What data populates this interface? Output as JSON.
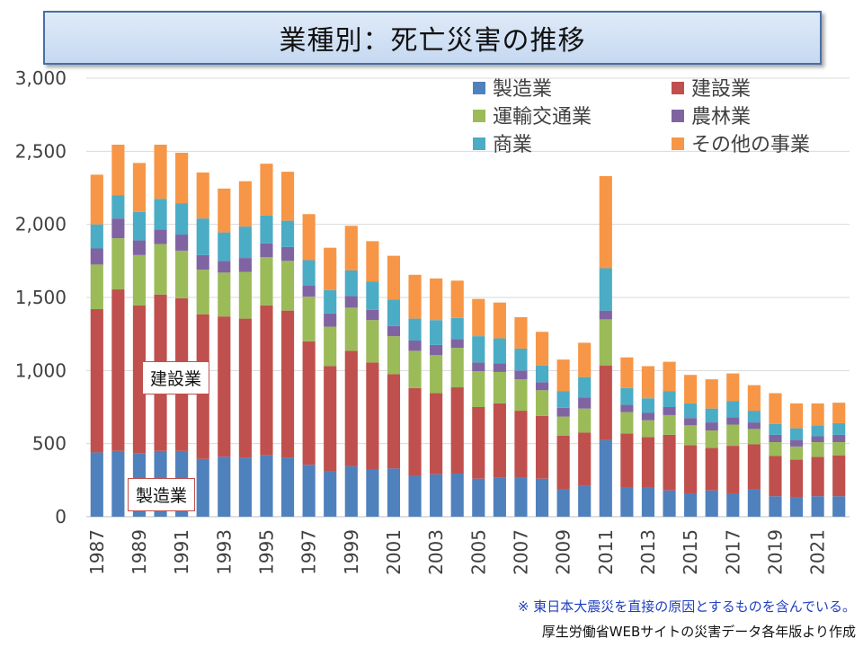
{
  "title": "業種別：死亡災害の推移",
  "notes": {
    "earthquake": "※ 東日本大震災を直接の原因とするものを含んでいる。",
    "source": "厚生労働省WEBサイトの災害データ各年版より作成"
  },
  "callouts": {
    "construction": "建設業",
    "manufacturing": "製造業"
  },
  "chart_data": {
    "type": "bar",
    "stacked": true,
    "title": "業種別：死亡災害の推移",
    "xlabel": "",
    "ylabel": "",
    "ylim": [
      0,
      3000
    ],
    "y_ticks": [
      0,
      500,
      1000,
      1500,
      2000,
      2500,
      3000
    ],
    "y_tick_labels": [
      "0",
      "500",
      "1,000",
      "1,500",
      "2,000",
      "2,500",
      "3,000"
    ],
    "grid": true,
    "legend_position": "top-right",
    "categories": [
      "1987",
      "1988",
      "1989",
      "1990",
      "1991",
      "1992",
      "1993",
      "1994",
      "1995",
      "1996",
      "1997",
      "1998",
      "1999",
      "2000",
      "2001",
      "2002",
      "2003",
      "2004",
      "2005",
      "2006",
      "2007",
      "2008",
      "2009",
      "2010",
      "2011",
      "2012",
      "2013",
      "2014",
      "2015",
      "2016",
      "2017",
      "2018",
      "2019",
      "2020",
      "2021",
      "2022"
    ],
    "x_tick_labels": [
      "1987",
      "1989",
      "1991",
      "1993",
      "1995",
      "1997",
      "1999",
      "2001",
      "2003",
      "2005",
      "2007",
      "2009",
      "2011",
      "2013",
      "2015",
      "2017",
      "2019",
      "2021"
    ],
    "series": [
      {
        "name": "製造業",
        "color": "#4f81bd",
        "values": [
          440,
          450,
          435,
          450,
          450,
          395,
          410,
          405,
          420,
          405,
          355,
          310,
          345,
          320,
          330,
          280,
          290,
          295,
          260,
          270,
          265,
          260,
          185,
          210,
          525,
          200,
          200,
          180,
          160,
          180,
          160,
          185,
          140,
          135,
          140,
          140
        ]
      },
      {
        "name": "建設業",
        "color": "#c0504d",
        "values": [
          980,
          1105,
          1010,
          1070,
          1045,
          990,
          960,
          950,
          1025,
          1005,
          845,
          720,
          790,
          735,
          645,
          600,
          555,
          590,
          490,
          505,
          460,
          430,
          370,
          365,
          510,
          370,
          345,
          380,
          330,
          290,
          325,
          310,
          275,
          255,
          270,
          280
        ]
      },
      {
        "name": "運輸交通業",
        "color": "#9bbb59",
        "values": [
          305,
          350,
          345,
          345,
          325,
          305,
          300,
          320,
          330,
          340,
          305,
          270,
          295,
          290,
          260,
          255,
          260,
          270,
          245,
          215,
          215,
          175,
          130,
          165,
          315,
          145,
          115,
          135,
          135,
          120,
          145,
          105,
          95,
          90,
          100,
          90
        ]
      },
      {
        "name": "農林業",
        "color": "#8064a2",
        "values": [
          110,
          135,
          100,
          100,
          110,
          100,
          80,
          95,
          95,
          95,
          75,
          90,
          80,
          70,
          70,
          70,
          70,
          60,
          60,
          60,
          60,
          55,
          60,
          75,
          60,
          50,
          50,
          55,
          50,
          55,
          50,
          45,
          50,
          45,
          40,
          50
        ]
      },
      {
        "name": "商業",
        "color": "#4bacc6",
        "values": [
          165,
          160,
          195,
          210,
          215,
          250,
          195,
          215,
          190,
          180,
          175,
          160,
          175,
          195,
          180,
          150,
          170,
          145,
          180,
          170,
          150,
          115,
          115,
          140,
          290,
          115,
          100,
          110,
          100,
          95,
          110,
          80,
          75,
          80,
          75,
          80
        ]
      },
      {
        "name": "その他の事業",
        "color": "#f79646",
        "values": [
          340,
          345,
          335,
          370,
          345,
          315,
          300,
          310,
          355,
          335,
          315,
          290,
          305,
          275,
          300,
          300,
          285,
          255,
          255,
          245,
          215,
          230,
          215,
          235,
          630,
          210,
          220,
          200,
          195,
          200,
          190,
          175,
          210,
          170,
          150,
          140
        ]
      }
    ]
  }
}
